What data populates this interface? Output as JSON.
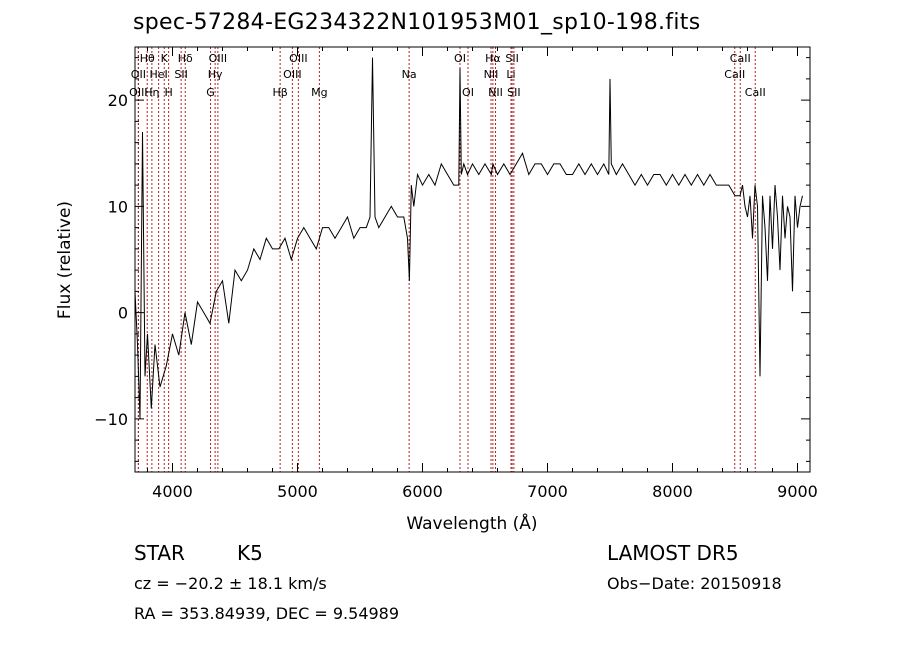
{
  "chart_data": {
    "type": "line",
    "title": "spec-57284-EG234322N101953M01_sp10-198.fits",
    "xlabel": "Wavelength (Å)",
    "ylabel": "Flux (relative)",
    "xlim": [
      3700,
      9100
    ],
    "ylim": [
      -15,
      25
    ],
    "xticks": [
      4000,
      5000,
      6000,
      7000,
      8000,
      9000
    ],
    "xtick_labels": [
      "4000",
      "5000",
      "6000",
      "7000",
      "8000",
      "9000"
    ],
    "yticks": [
      -10,
      0,
      10,
      20
    ],
    "ytick_labels": [
      "−10",
      "0",
      "10",
      "20"
    ],
    "grid": false,
    "series": [
      {
        "x": [
          3700,
          3720,
          3740,
          3760,
          3780,
          3800,
          3830,
          3860,
          3900,
          3950,
          4000,
          4050,
          4100,
          4150,
          4200,
          4250,
          4300,
          4350,
          4400,
          4450,
          4500,
          4550,
          4600,
          4650,
          4700,
          4750,
          4800,
          4850,
          4900,
          4950,
          5000,
          5050,
          5100,
          5150,
          5200,
          5250,
          5300,
          5350,
          5400,
          5450,
          5500,
          5550,
          5580,
          5600,
          5620,
          5650,
          5700,
          5750,
          5800,
          5850,
          5880,
          5895,
          5910,
          5930,
          5960,
          6000,
          6050,
          6100,
          6150,
          6200,
          6250,
          6290,
          6300,
          6310,
          6330,
          6360,
          6400,
          6450,
          6500,
          6550,
          6563,
          6600,
          6650,
          6700,
          6750,
          6800,
          6850,
          6900,
          6950,
          7000,
          7050,
          7100,
          7150,
          7200,
          7250,
          7300,
          7350,
          7400,
          7450,
          7490,
          7500,
          7510,
          7550,
          7600,
          7650,
          7700,
          7750,
          7800,
          7850,
          7900,
          7950,
          8000,
          8050,
          8100,
          8150,
          8200,
          8250,
          8300,
          8350,
          8400,
          8450,
          8500,
          8540,
          8560,
          8580,
          8600,
          8620,
          8640,
          8660,
          8680,
          8700,
          8720,
          8740,
          8760,
          8780,
          8800,
          8820,
          8840,
          8860,
          8880,
          8900,
          8920,
          8940,
          8960,
          8980,
          9000,
          9020,
          9040
        ],
        "y": [
          2,
          -3,
          -10,
          17,
          -6,
          -2,
          -9,
          -3,
          -7,
          -5,
          -2,
          -4,
          0,
          -3,
          1,
          0,
          -1,
          2,
          3,
          -1,
          4,
          3,
          4,
          6,
          5,
          7,
          6,
          6,
          7,
          5,
          7,
          8,
          7,
          6,
          8,
          8,
          7,
          8,
          9,
          7,
          8,
          8,
          9,
          24,
          9,
          8,
          9,
          10,
          9,
          9,
          7,
          3,
          12,
          10,
          13,
          12,
          13,
          12,
          14,
          13,
          12,
          12,
          23,
          13,
          14,
          13,
          14,
          13,
          14,
          13,
          14,
          13,
          14,
          13,
          14,
          15,
          13,
          14,
          14,
          13,
          14,
          14,
          13,
          13,
          14,
          13,
          14,
          13,
          14,
          13,
          22,
          14,
          13,
          14,
          13,
          12,
          13,
          12,
          13,
          13,
          12,
          13,
          12,
          13,
          12,
          13,
          12,
          13,
          12,
          12,
          12,
          11,
          11,
          12,
          10,
          9,
          11,
          7,
          12,
          10,
          -6,
          11,
          8,
          3,
          11,
          6,
          12,
          9,
          4,
          11,
          7,
          10,
          9,
          2,
          11,
          8,
          10,
          11
        ]
      }
    ],
    "lines": [
      {
        "name": "Hθ",
        "x": 3798,
        "row": 1
      },
      {
        "name": "K",
        "x": 3934,
        "row": 1
      },
      {
        "name": "Hδ",
        "x": 4102,
        "row": 1
      },
      {
        "name": "OIII",
        "x": 4363,
        "row": 1
      },
      {
        "name": "OIII",
        "x": 5007,
        "row": 1
      },
      {
        "name": "OI",
        "x": 6300,
        "row": 1
      },
      {
        "name": "Hα",
        "x": 6563,
        "row": 1
      },
      {
        "name": "SII",
        "x": 6717,
        "row": 1
      },
      {
        "name": "CaII",
        "x": 8542,
        "row": 1
      },
      {
        "name": "OII",
        "x": 3727,
        "row": 2
      },
      {
        "name": "HeI",
        "x": 3889,
        "row": 2
      },
      {
        "name": "SII",
        "x": 4069,
        "row": 2
      },
      {
        "name": "Hγ",
        "x": 4341,
        "row": 2
      },
      {
        "name": "OIII",
        "x": 4959,
        "row": 2
      },
      {
        "name": "Na",
        "x": 5893,
        "row": 2
      },
      {
        "name": "NII",
        "x": 6548,
        "row": 2
      },
      {
        "name": "Li",
        "x": 6708,
        "row": 2
      },
      {
        "name": "CaII",
        "x": 8498,
        "row": 2
      },
      {
        "name": "OIII",
        "x": 3727,
        "row": 3
      },
      {
        "name": "Hη",
        "x": 3835,
        "row": 3
      },
      {
        "name": "H",
        "x": 3969,
        "row": 3
      },
      {
        "name": "G",
        "x": 4304,
        "row": 3
      },
      {
        "name": "Hβ",
        "x": 4861,
        "row": 3
      },
      {
        "name": "Mg",
        "x": 5175,
        "row": 3
      },
      {
        "name": "OI",
        "x": 6364,
        "row": 3
      },
      {
        "name": "NII",
        "x": 6584,
        "row": 3
      },
      {
        "name": "SII",
        "x": 6731,
        "row": 3
      },
      {
        "name": "CaII",
        "x": 8662,
        "row": 3
      }
    ]
  },
  "info": {
    "object_class": "STAR",
    "subclass": "K5",
    "survey": "LAMOST DR5",
    "redshift": "cz = −20.2 ± 18.1 km/s",
    "obs_date": "Obs−Date: 20150918",
    "coords": "RA = 353.84939, DEC =   9.54989"
  },
  "colors": {
    "line_marker": "#b22222",
    "spectrum": "#000000"
  }
}
